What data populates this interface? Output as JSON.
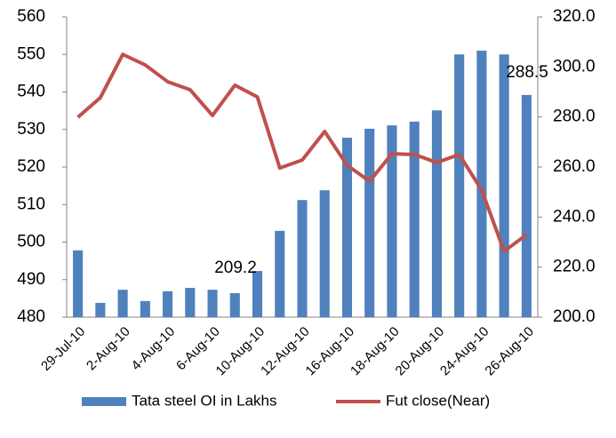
{
  "chart_data": {
    "type": "bar-line",
    "categories": [
      "29-Jul-10",
      null,
      "2-Aug-10",
      null,
      "4-Aug-10",
      null,
      "6-Aug-10",
      null,
      "10-Aug-10",
      null,
      "12-Aug-10",
      null,
      "16-Aug-10",
      null,
      "18-Aug-10",
      null,
      "20-Aug-10",
      null,
      "24-Aug-10",
      null,
      "26-Aug-10"
    ],
    "series": [
      {
        "name": "Tata steel OI in Lakhs",
        "type": "bar",
        "color": "#4f81bd",
        "values": [
          497.8,
          483.8,
          487.3,
          484.3,
          486.9,
          487.8,
          487.3,
          486.4,
          492.3,
          503,
          511.2,
          513.8,
          527.8,
          530.2,
          531.1,
          532.1,
          535.1,
          550,
          551,
          550,
          539.2
        ]
      },
      {
        "name": "Fut close(Near)",
        "type": "line",
        "axis": "y2",
        "color": "#c0504d",
        "values": [
          279.9,
          287.7,
          305,
          300.8,
          294.1,
          290.9,
          280.6,
          292.7,
          288,
          259.6,
          262.8,
          274.2,
          260.7,
          254.3,
          265.3,
          265,
          261.8,
          265,
          250.8,
          226.3,
          233
        ]
      }
    ],
    "annotations": [
      "209.2",
      "288.5"
    ],
    "ylim": [
      480,
      560
    ],
    "yticks": [
      480,
      490,
      500,
      510,
      520,
      530,
      540,
      550,
      560
    ],
    "y2lim": [
      200,
      320
    ],
    "y2ticks": [
      {
        "value": 200,
        "label": "200.0"
      },
      {
        "value": 220,
        "label": "220.0"
      },
      {
        "value": 240,
        "label": "240.0"
      },
      {
        "value": 260,
        "label": "260.0"
      },
      {
        "value": 280,
        "label": "280.0"
      },
      {
        "value": 300,
        "label": "300.0"
      },
      {
        "value": 320,
        "label": "320.0"
      }
    ],
    "legend": "bottom"
  }
}
